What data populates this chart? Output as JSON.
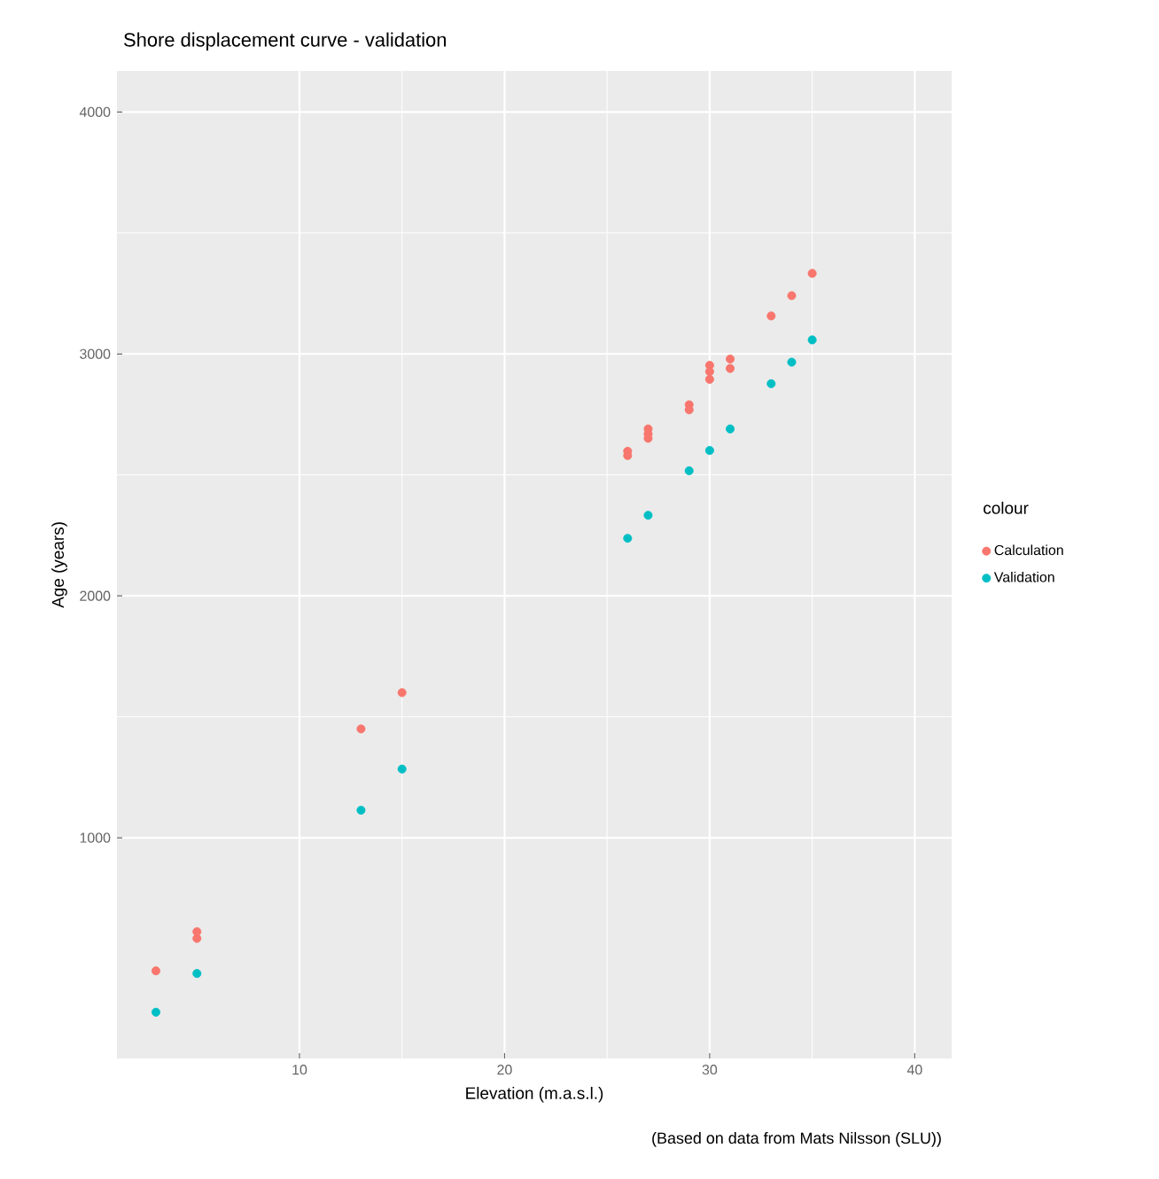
{
  "chart_data": {
    "type": "scatter",
    "title": "Shore displacement curve - validation",
    "xlabel": "Elevation (m.a.s.l.)",
    "ylabel": "Age (years)",
    "legend_title": "colour",
    "annotations": [
      "(Based on data from Mats Nilsson (SLU))"
    ],
    "series": [
      {
        "name": "Calculation",
        "color": "#f8766d",
        "x": [
          3,
          5,
          5,
          13,
          15,
          26,
          26,
          27,
          27,
          27,
          29,
          29,
          30,
          30,
          30,
          31,
          31,
          33,
          34,
          35
        ],
        "values": [
          450,
          612,
          584,
          1450,
          1600,
          2598,
          2580,
          2690,
          2669,
          2651,
          2790,
          2769,
          2953,
          2927,
          2895,
          2979,
          2940,
          3157,
          3241,
          3333
        ]
      },
      {
        "name": "Validation",
        "color": "#00bfc4",
        "x": [
          3,
          5,
          13,
          15,
          26,
          27,
          29,
          30,
          31,
          33,
          34,
          35
        ],
        "values": [
          279,
          439,
          1114,
          1284,
          2238,
          2333,
          2517,
          2601,
          2690,
          2877,
          2966,
          3058
        ]
      }
    ],
    "xlim": [
      1.1,
      41.8
    ],
    "ylim": [
      88,
      4170
    ],
    "xticks": [
      10,
      20,
      30,
      40
    ],
    "yticks": [
      1000,
      2000,
      3000,
      4000
    ],
    "grid": true,
    "legend": "right"
  }
}
